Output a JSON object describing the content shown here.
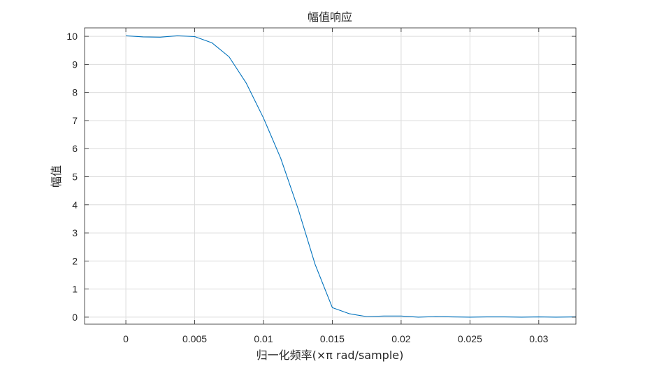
{
  "chart_data": {
    "type": "line",
    "title": "幅值响应",
    "xlabel": "归一化频率(×π rad/sample)",
    "ylabel": "幅值",
    "xlim": [
      -0.003,
      0.0327
    ],
    "ylim": [
      -0.25,
      10.3
    ],
    "xticks": [
      0,
      0.005,
      0.01,
      0.015,
      0.02,
      0.025,
      0.03
    ],
    "xtick_labels": [
      "0",
      "0.005",
      "0.01",
      "0.015",
      "0.02",
      "0.025",
      "0.03"
    ],
    "yticks": [
      0,
      1,
      2,
      3,
      4,
      5,
      6,
      7,
      8,
      9,
      10
    ],
    "ytick_labels": [
      "0",
      "1",
      "2",
      "3",
      "4",
      "5",
      "6",
      "7",
      "8",
      "9",
      "10"
    ],
    "grid": true,
    "series": [
      {
        "color": "#0072bd",
        "x": [
          0,
          0.00125,
          0.0025,
          0.00375,
          0.005,
          0.00625,
          0.0075,
          0.00875,
          0.01,
          0.01125,
          0.0125,
          0.01375,
          0.015,
          0.01625,
          0.0175,
          0.01875,
          0.02,
          0.02125,
          0.0225,
          0.02375,
          0.025,
          0.02625,
          0.0275,
          0.02875,
          0.03,
          0.03125,
          0.0327
        ],
        "y": [
          10.02,
          9.98,
          9.97,
          10.02,
          9.99,
          9.77,
          9.27,
          8.33,
          7.09,
          5.66,
          3.88,
          1.88,
          0.34,
          0.12,
          0.02,
          0.04,
          0.04,
          0.0,
          0.02,
          0.01,
          0.0,
          0.01,
          0.01,
          0.0,
          0.01,
          0.0,
          0.01
        ]
      }
    ]
  }
}
